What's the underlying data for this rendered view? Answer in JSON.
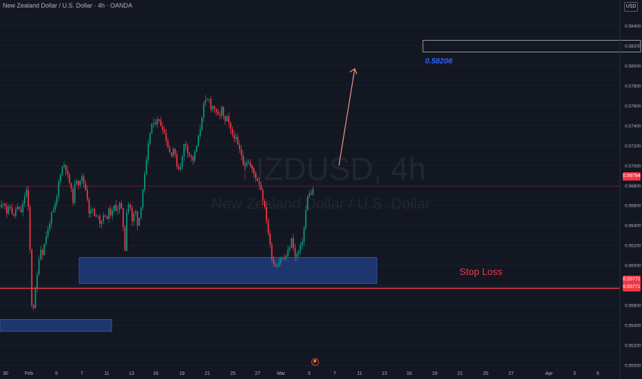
{
  "header": {
    "title": "New Zealand Dollar / U.S. Dollar · 4h · OANDA",
    "currency": "USD"
  },
  "watermark": {
    "symbol": "NZDUSD, 4h",
    "description": "New Zealand Dollar / U.S. Dollar"
  },
  "annotations": {
    "target_price": "0.58206",
    "stop_loss_label": "Stop Loss",
    "event_icon": "flash-icon"
  },
  "price_axis": {
    "current_price": "0.56794",
    "stop_loss_tags": [
      "0.55771",
      "0.55771"
    ]
  },
  "colors": {
    "background": "#131722",
    "up_candle": "#089981",
    "down_candle": "#f23645",
    "zone": "#1e3a75",
    "target_line": "#2962ff",
    "stop_loss": "#f23645",
    "arrow": "#ee9f8a"
  },
  "chart_data": {
    "type": "candlestick",
    "title": "New Zealand Dollar / U.S. Dollar · 4h · OANDA",
    "xlabel": "",
    "ylabel": "",
    "ylim": [
      0.5496,
      0.5854
    ],
    "y_ticks": [
      "0.58400",
      "0.58200",
      "0.58000",
      "0.57800",
      "0.57600",
      "0.57400",
      "0.57200",
      "0.57000",
      "0.56800",
      "0.56600",
      "0.56400",
      "0.56200",
      "0.56000",
      "0.55800",
      "0.55600",
      "0.55400",
      "0.55200",
      "0.55000"
    ],
    "x_ticks": [
      "30",
      "Feb",
      "5",
      "7",
      "11",
      "13",
      "16",
      "19",
      "21",
      "25",
      "27",
      "Mar",
      "5",
      "7",
      "11",
      "13",
      "16",
      "19",
      "21",
      "25",
      "27",
      "Apr",
      "3",
      "6"
    ],
    "close_path_vertices": [
      [
        0,
        0.5658
      ],
      [
        6,
        0.5665
      ],
      [
        10,
        0.5652
      ],
      [
        14,
        0.566
      ],
      [
        20,
        0.5648
      ],
      [
        24,
        0.566
      ],
      [
        30,
        0.5652
      ],
      [
        34,
        0.5663
      ],
      [
        38,
        0.5678
      ],
      [
        42,
        0.565
      ],
      [
        45,
        0.5585
      ],
      [
        47,
        0.5545
      ],
      [
        50,
        0.5568
      ],
      [
        54,
        0.559
      ],
      [
        58,
        0.5618
      ],
      [
        62,
        0.5612
      ],
      [
        66,
        0.5628
      ],
      [
        70,
        0.5636
      ],
      [
        74,
        0.565
      ],
      [
        78,
        0.5655
      ],
      [
        82,
        0.5665
      ],
      [
        86,
        0.5688
      ],
      [
        90,
        0.5698
      ],
      [
        94,
        0.5702
      ],
      [
        98,
        0.569
      ],
      [
        102,
        0.568
      ],
      [
        106,
        0.5665
      ],
      [
        110,
        0.5688
      ],
      [
        114,
        0.5682
      ],
      [
        118,
        0.569
      ],
      [
        122,
        0.5682
      ],
      [
        126,
        0.5672
      ],
      [
        130,
        0.565
      ],
      [
        134,
        0.5658
      ],
      [
        138,
        0.5646
      ],
      [
        142,
        0.5652
      ],
      [
        146,
        0.564
      ],
      [
        150,
        0.5652
      ],
      [
        154,
        0.5645
      ],
      [
        158,
        0.5655
      ],
      [
        162,
        0.565
      ],
      [
        166,
        0.566
      ],
      [
        170,
        0.5655
      ],
      [
        174,
        0.5662
      ],
      [
        178,
        0.565
      ],
      [
        181,
        0.561
      ],
      [
        184,
        0.5655
      ],
      [
        188,
        0.5665
      ],
      [
        192,
        0.5642
      ],
      [
        196,
        0.5658
      ],
      [
        200,
        0.564
      ],
      [
        204,
        0.5655
      ],
      [
        208,
        0.568
      ],
      [
        212,
        0.57
      ],
      [
        216,
        0.5725
      ],
      [
        220,
        0.5742
      ],
      [
        224,
        0.574
      ],
      [
        228,
        0.5748
      ],
      [
        232,
        0.5742
      ],
      [
        236,
        0.5738
      ],
      [
        240,
        0.573
      ],
      [
        244,
        0.5718
      ],
      [
        248,
        0.571
      ],
      [
        252,
        0.5718
      ],
      [
        256,
        0.5702
      ],
      [
        260,
        0.5696
      ],
      [
        264,
        0.5705
      ],
      [
        268,
        0.5725
      ],
      [
        272,
        0.5715
      ],
      [
        276,
        0.571
      ],
      [
        280,
        0.5705
      ],
      [
        284,
        0.5715
      ],
      [
        288,
        0.5728
      ],
      [
        292,
        0.5742
      ],
      [
        294,
        0.5755
      ],
      [
        297,
        0.5765
      ],
      [
        300,
        0.5763
      ],
      [
        303,
        0.5768
      ],
      [
        306,
        0.5758
      ],
      [
        310,
        0.576
      ],
      [
        314,
        0.5752
      ],
      [
        318,
        0.5748
      ],
      [
        322,
        0.5758
      ],
      [
        326,
        0.5742
      ],
      [
        330,
        0.5748
      ],
      [
        334,
        0.5736
      ],
      [
        338,
        0.573
      ],
      [
        342,
        0.5728
      ],
      [
        346,
        0.5718
      ],
      [
        350,
        0.5712
      ],
      [
        354,
        0.57
      ],
      [
        358,
        0.5704
      ],
      [
        362,
        0.5702
      ],
      [
        366,
        0.5696
      ],
      [
        370,
        0.569
      ],
      [
        374,
        0.5685
      ],
      [
        378,
        0.568
      ],
      [
        382,
        0.5665
      ],
      [
        386,
        0.565
      ],
      [
        390,
        0.563
      ],
      [
        393,
        0.5615
      ],
      [
        396,
        0.5603
      ],
      [
        400,
        0.56
      ],
      [
        404,
        0.5602
      ],
      [
        408,
        0.5608
      ],
      [
        412,
        0.5606
      ],
      [
        416,
        0.561
      ],
      [
        420,
        0.5618
      ],
      [
        424,
        0.5628
      ],
      [
        428,
        0.5608
      ],
      [
        432,
        0.5612
      ],
      [
        436,
        0.5618
      ],
      [
        440,
        0.5628
      ],
      [
        444,
        0.5655
      ],
      [
        448,
        0.5675
      ],
      [
        452,
        0.567
      ],
      [
        455,
        0.5679
      ]
    ],
    "series": [
      {
        "name": "NZDUSD",
        "interval": "4h",
        "last_close": 0.56794
      }
    ],
    "levels": [
      {
        "label": "0.58206",
        "price": 0.58206
      },
      {
        "label": "Stop Loss",
        "price": 0.55771
      }
    ],
    "zones": [
      {
        "price_top": 0.5608,
        "price_bottom": 0.5582
      },
      {
        "price_top": 0.5546,
        "price_bottom": 0.5534
      }
    ],
    "projection": {
      "from_price": 0.57,
      "to_price": 0.5797
    }
  }
}
